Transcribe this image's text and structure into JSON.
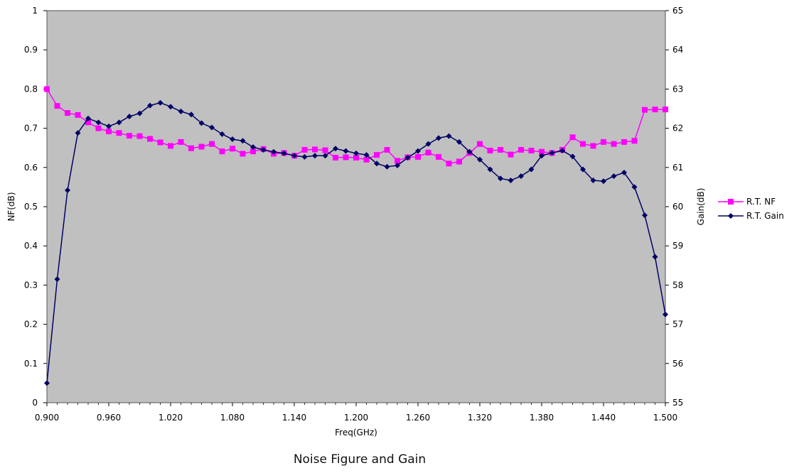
{
  "caption": "Noise Figure and Gain",
  "chart_data": {
    "type": "line",
    "title": "",
    "xlabel": "Freq(GHz)",
    "ylabel_left": "NF(dB)",
    "ylabel_right": "Gain(dB)",
    "xlim": [
      0.9,
      1.5
    ],
    "ylim_left": [
      0,
      1
    ],
    "ylim_right": [
      55,
      65
    ],
    "x_ticks": [
      "0.900",
      "0.960",
      "1.020",
      "1.080",
      "1.140",
      "1.200",
      "1.260",
      "1.320",
      "1.380",
      "1.440",
      "1.500"
    ],
    "y_ticks_left": [
      "0",
      "0.1",
      "0.2",
      "0.3",
      "0.4",
      "0.5",
      "0.6",
      "0.7",
      "0.8",
      "0.9",
      "1"
    ],
    "y_ticks_right": [
      "55",
      "56",
      "57",
      "58",
      "59",
      "60",
      "61",
      "62",
      "63",
      "64",
      "65"
    ],
    "plot_background": "#c0c0c0",
    "grid": false,
    "legend_position": "right",
    "x": [
      0.9,
      0.91,
      0.92,
      0.93,
      0.94,
      0.95,
      0.96,
      0.97,
      0.98,
      0.99,
      1.0,
      1.01,
      1.02,
      1.03,
      1.04,
      1.05,
      1.06,
      1.07,
      1.08,
      1.09,
      1.1,
      1.11,
      1.12,
      1.13,
      1.14,
      1.15,
      1.16,
      1.17,
      1.18,
      1.19,
      1.2,
      1.21,
      1.22,
      1.23,
      1.24,
      1.25,
      1.26,
      1.27,
      1.28,
      1.29,
      1.3,
      1.31,
      1.32,
      1.33,
      1.34,
      1.35,
      1.36,
      1.37,
      1.38,
      1.39,
      1.4,
      1.41,
      1.42,
      1.43,
      1.44,
      1.45,
      1.46,
      1.47,
      1.48,
      1.49,
      1.5
    ],
    "series": [
      {
        "name": "R.T. NF",
        "axis": "left",
        "color": "#ff00ff",
        "marker": "square",
        "values": [
          0.8,
          0.757,
          0.739,
          0.734,
          0.715,
          0.7,
          0.692,
          0.688,
          0.681,
          0.68,
          0.673,
          0.664,
          0.655,
          0.665,
          0.649,
          0.653,
          0.66,
          0.641,
          0.648,
          0.635,
          0.641,
          0.647,
          0.635,
          0.637,
          0.63,
          0.645,
          0.646,
          0.644,
          0.625,
          0.626,
          0.625,
          0.62,
          0.632,
          0.645,
          0.617,
          0.626,
          0.627,
          0.638,
          0.627,
          0.61,
          0.615,
          0.637,
          0.66,
          0.643,
          0.645,
          0.633,
          0.645,
          0.643,
          0.64,
          0.637,
          0.645,
          0.677,
          0.66,
          0.655,
          0.665,
          0.66,
          0.665,
          0.668,
          0.747,
          0.748,
          0.748
        ]
      },
      {
        "name": "R.T. Gain",
        "axis": "right",
        "color": "#000066",
        "marker": "diamond",
        "values": [
          55.5,
          58.15,
          60.42,
          61.88,
          62.25,
          62.15,
          62.05,
          62.15,
          62.3,
          62.38,
          62.58,
          62.65,
          62.55,
          62.43,
          62.35,
          62.13,
          62.02,
          61.85,
          61.72,
          61.68,
          61.52,
          61.45,
          61.4,
          61.36,
          61.3,
          61.27,
          61.3,
          61.3,
          61.48,
          61.42,
          61.36,
          61.32,
          61.1,
          61.02,
          61.05,
          61.25,
          61.42,
          61.6,
          61.75,
          61.8,
          61.65,
          61.4,
          61.2,
          60.95,
          60.72,
          60.67,
          60.78,
          60.95,
          61.3,
          61.37,
          61.43,
          61.28,
          60.95,
          60.67,
          60.65,
          60.78,
          60.87,
          60.5,
          59.78,
          58.72,
          57.25
        ]
      }
    ]
  }
}
